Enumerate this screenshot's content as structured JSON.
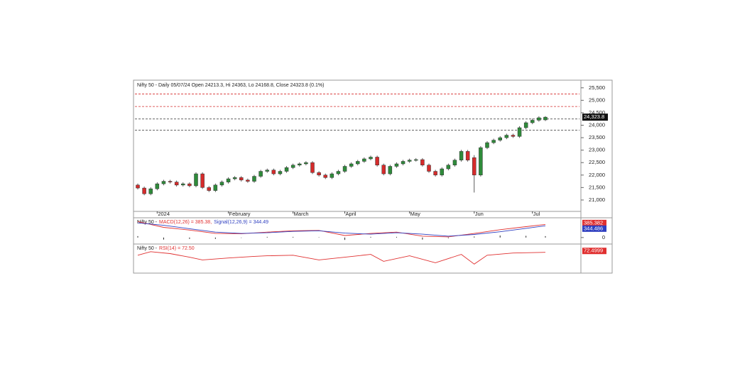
{
  "chart_data": [
    {
      "type": "candlestick",
      "title": "Nifty 50 - Daily 05/07/24 Open 24213.3, Hi 24363, Lo 24168.8, Close 24323.8 (0.1%)",
      "categories": [
        null,
        null,
        null,
        "2024",
        null,
        null,
        null,
        null,
        null,
        null,
        null,
        null,
        null,
        null,
        "February",
        null,
        null,
        null,
        null,
        null,
        null,
        null,
        null,
        null,
        "March",
        null,
        null,
        null,
        null,
        null,
        null,
        null,
        "April",
        null,
        null,
        null,
        null,
        null,
        null,
        null,
        null,
        null,
        "May",
        null,
        null,
        null,
        null,
        null,
        null,
        null,
        null,
        null,
        "Jun",
        null,
        null,
        null,
        null,
        null,
        null,
        null,
        null,
        "Jul",
        null,
        null
      ],
      "open": [
        21600,
        21480,
        21250,
        21450,
        21650,
        21750,
        21720,
        21600,
        21650,
        21570,
        22050,
        21500,
        21380,
        21600,
        21720,
        21850,
        21900,
        21800,
        21750,
        21950,
        22150,
        22200,
        22050,
        22150,
        22300,
        22400,
        22450,
        22500,
        22100,
        22000,
        21900,
        22050,
        22150,
        22350,
        22450,
        22550,
        22650,
        22720,
        22400,
        22050,
        22350,
        22450,
        22550,
        22600,
        22620,
        22400,
        22150,
        22000,
        22250,
        22400,
        22600,
        22950,
        22700,
        22000,
        23100,
        23300,
        23400,
        23500,
        23600,
        23550,
        23900,
        24100,
        24200,
        24213.3
      ],
      "high": [
        21660,
        21540,
        21510,
        21710,
        21810,
        21810,
        21780,
        21710,
        21710,
        22110,
        22110,
        21560,
        21660,
        21780,
        21910,
        21960,
        21960,
        21860,
        22010,
        22210,
        22260,
        22260,
        22210,
        22360,
        22460,
        22510,
        22560,
        22560,
        22160,
        22060,
        22110,
        22210,
        22410,
        22510,
        22610,
        22710,
        22780,
        22780,
        22460,
        22410,
        22510,
        22610,
        22660,
        22680,
        22680,
        22460,
        22210,
        22310,
        22460,
        22660,
        23010,
        23010,
        22800,
        23160,
        23360,
        23460,
        23560,
        23660,
        23660,
        23960,
        24160,
        24260,
        24360,
        24363
      ],
      "low": [
        21420,
        21190,
        21190,
        21390,
        21590,
        21660,
        21540,
        21540,
        21510,
        21510,
        21440,
        21320,
        21320,
        21540,
        21660,
        21790,
        21740,
        21690,
        21690,
        21890,
        22090,
        21990,
        21990,
        22090,
        22240,
        22340,
        22390,
        22040,
        21940,
        21840,
        21840,
        21990,
        22090,
        22290,
        22390,
        22490,
        22590,
        22340,
        21990,
        21990,
        22290,
        22390,
        22490,
        22540,
        22340,
        22090,
        21940,
        21940,
        22190,
        22340,
        22540,
        22540,
        21300,
        21940,
        23040,
        23240,
        23340,
        23440,
        23490,
        23490,
        23840,
        24040,
        24140,
        24168.8
      ],
      "close": [
        21480,
        21250,
        21450,
        21650,
        21750,
        21720,
        21600,
        21650,
        21570,
        22050,
        21500,
        21380,
        21600,
        21720,
        21850,
        21900,
        21800,
        21750,
        21950,
        22150,
        22200,
        22050,
        22150,
        22300,
        22400,
        22450,
        22500,
        22100,
        22000,
        21900,
        22050,
        22150,
        22350,
        22450,
        22550,
        22650,
        22720,
        22400,
        22050,
        22350,
        22450,
        22550,
        22600,
        22620,
        22400,
        22150,
        22000,
        22250,
        22400,
        22600,
        22950,
        22600,
        22000,
        23100,
        23300,
        23400,
        23500,
        23600,
        23550,
        23900,
        24100,
        24200,
        24300,
        24323.8
      ],
      "close_label": "24,323.8",
      "up_color": "#2e8b3a",
      "down_color": "#d62b2b",
      "ylim": [
        20600,
        25750
      ],
      "yticks": [
        {
          "value": 21000,
          "label": "21,000"
        },
        {
          "value": 21500,
          "label": "21,500"
        },
        {
          "value": 22000,
          "label": "22,000"
        },
        {
          "value": 22500,
          "label": "22,500"
        },
        {
          "value": 23000,
          "label": "23,000"
        },
        {
          "value": 23500,
          "label": "23,500"
        },
        {
          "value": 24000,
          "label": "24,000"
        },
        {
          "value": 24500,
          "label": "24,500"
        },
        {
          "value": 25000,
          "label": "25,000"
        },
        {
          "value": 25500,
          "label": "25,500"
        }
      ],
      "levels": [
        {
          "value": 25250,
          "color": "#d62b2b"
        },
        {
          "value": 24750,
          "color": "#d62b2b"
        },
        {
          "value": 24250,
          "color": "#333333"
        },
        {
          "value": 23800,
          "color": "#333333"
        }
      ]
    },
    {
      "type": "line",
      "title": "Nifty 50 -",
      "x": [
        0,
        4,
        8,
        12,
        16,
        20,
        24,
        28,
        32,
        36,
        40,
        44,
        48,
        52,
        56,
        60,
        63
      ],
      "series": [
        {
          "name": "MACD(12,26) = 385.38,",
          "color": "#e03030",
          "values": [
            470,
            300,
            220,
            120,
            110,
            160,
            200,
            210,
            60,
            120,
            160,
            40,
            20,
            120,
            230,
            320,
            385.382
          ],
          "value_labels": [
            null,
            null,
            null,
            null,
            null,
            null,
            null,
            null,
            null,
            null,
            null,
            null,
            null,
            null,
            null,
            null,
            "385.382"
          ]
        },
        {
          "name": "Signal(12,26,9) = 344.49",
          "color": "#2f3fc0",
          "values": [
            430,
            360,
            260,
            160,
            120,
            140,
            180,
            200,
            130,
            100,
            140,
            100,
            40,
            90,
            170,
            270,
            344.486
          ],
          "value_labels": [
            null,
            null,
            null,
            null,
            null,
            null,
            null,
            null,
            null,
            null,
            null,
            null,
            null,
            null,
            null,
            null,
            "344.486"
          ]
        }
      ],
      "histogram": {
        "color": "#222222",
        "values": [
          40,
          -60,
          -40,
          -40,
          -10,
          20,
          20,
          10,
          -70,
          20,
          20,
          -60,
          -20,
          30,
          60,
          50,
          40.9
        ]
      },
      "ylim": [
        -170,
        560
      ],
      "yticks": [
        0
      ]
    },
    {
      "type": "line",
      "title": "Nifty 50 -",
      "x": [
        0,
        2,
        5,
        8,
        10,
        14,
        18,
        20,
        24,
        28,
        32,
        36,
        38,
        42,
        46,
        50,
        52,
        54,
        58,
        63
      ],
      "series": [
        {
          "name": "RSI(14) = 72.50",
          "color": "#e03030",
          "values": [
            62,
            75,
            68,
            55,
            45,
            52,
            58,
            60,
            62,
            45,
            55,
            65,
            40,
            60,
            35,
            65,
            30,
            62,
            70,
            72.4999
          ],
          "value_labels": [
            null,
            null,
            null,
            null,
            null,
            null,
            null,
            null,
            null,
            null,
            null,
            null,
            null,
            null,
            null,
            null,
            null,
            null,
            null,
            "72.4999"
          ]
        }
      ],
      "ylim": [
        0,
        100
      ]
    }
  ]
}
